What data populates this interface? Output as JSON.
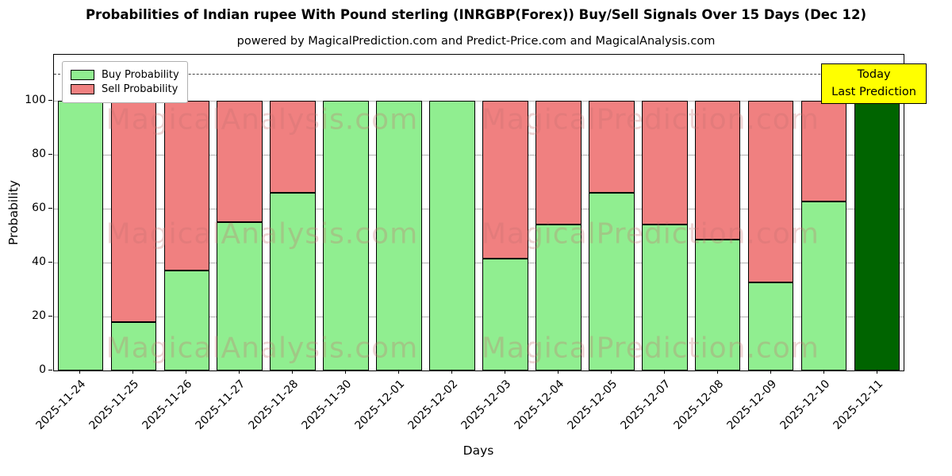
{
  "watermarks": [
    "MagicalAnalysis.com",
    "MagicalPrediction.com"
  ],
  "annotation_box": {
    "line1": "Today",
    "line2": "Last Prediction",
    "background": "#ffff00"
  },
  "chart_data": {
    "type": "bar",
    "stacked": true,
    "title": "Probabilities of Indian rupee With Pound sterling (INRGBP(Forex)) Buy/Sell Signals Over 15 Days (Dec 12)",
    "subtitle": "powered by MagicalPrediction.com and Predict-Price.com and MagicalAnalysis.com",
    "xlabel": "Days",
    "ylabel": "Probability",
    "categories": [
      "2025-11-24",
      "2025-11-25",
      "2025-11-26",
      "2025-11-27",
      "2025-11-28",
      "2025-11-30",
      "2025-12-01",
      "2025-12-02",
      "2025-12-03",
      "2025-12-04",
      "2025-12-05",
      "2025-12-07",
      "2025-12-08",
      "2025-12-09",
      "2025-12-10",
      "2025-12-11"
    ],
    "series": [
      {
        "name": "Buy Probability",
        "color": "#90ee90",
        "values": [
          100,
          18,
          37,
          55,
          66,
          100,
          100,
          100,
          41.5,
          54,
          66,
          54,
          48.5,
          32.5,
          62.5,
          100
        ]
      },
      {
        "name": "Sell Probability",
        "color": "#f08080",
        "values": [
          0,
          82,
          63,
          45,
          34,
          0,
          0,
          0,
          58.5,
          46,
          34,
          46,
          51.5,
          67.5,
          37.5,
          0
        ]
      }
    ],
    "last_bar": {
      "index": 15,
      "color": "#006400"
    },
    "yticks": [
      0,
      20,
      40,
      60,
      80,
      100
    ],
    "ylim": [
      0,
      117
    ],
    "dashed_line_y": 110,
    "grid": true,
    "legend_position": "upper-left"
  }
}
